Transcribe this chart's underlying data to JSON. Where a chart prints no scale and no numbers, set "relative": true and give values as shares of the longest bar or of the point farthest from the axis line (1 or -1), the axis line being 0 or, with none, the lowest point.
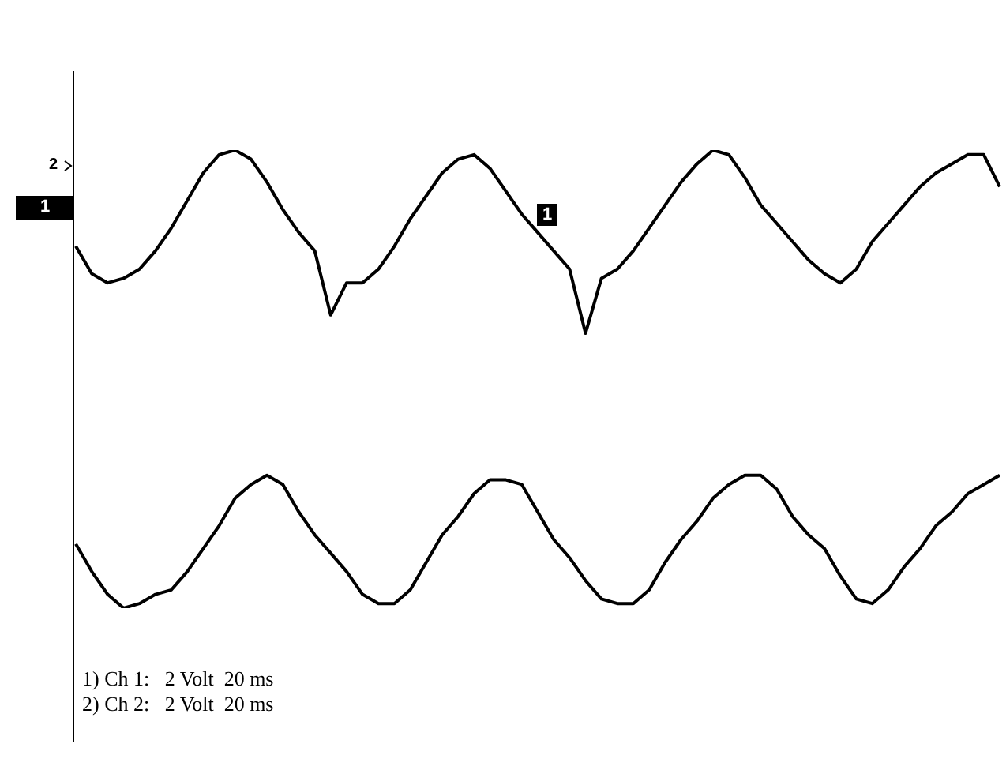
{
  "chart_data": {
    "type": "line",
    "relative": true,
    "legend": false,
    "marker": "none",
    "line_style": "solid",
    "categories": [
      null,
      null,
      null,
      null,
      null,
      null,
      null,
      null,
      null,
      null,
      null,
      null,
      null,
      null,
      null,
      null,
      null,
      null,
      null,
      null,
      null,
      null,
      null,
      null,
      null,
      null,
      null,
      null,
      null,
      null,
      null,
      null,
      null,
      null,
      null,
      null,
      null,
      null,
      null,
      null,
      null,
      null,
      null,
      null,
      null,
      null,
      null,
      null,
      null,
      null,
      null,
      null,
      null,
      null,
      null,
      null,
      null,
      null,
      null
    ],
    "series": [
      {
        "color": "#000000",
        "values": [
          0.79,
          0.73,
          0.71,
          0.72,
          0.74,
          0.78,
          0.83,
          0.89,
          0.95,
          0.99,
          1.0,
          0.98,
          0.93,
          0.87,
          0.82,
          0.78,
          0.64,
          0.71,
          0.71,
          0.74,
          0.79,
          0.85,
          0.9,
          0.95,
          0.98,
          0.99,
          0.96,
          0.91,
          0.86,
          0.82,
          0.78,
          0.74,
          0.6,
          0.72,
          0.74,
          0.78,
          0.83,
          0.88,
          0.93,
          0.97,
          1.0,
          0.99,
          0.94,
          0.88,
          0.84,
          0.8,
          0.76,
          0.73,
          0.71,
          0.74,
          0.8,
          0.84,
          0.88,
          0.92,
          0.95,
          0.97,
          0.99,
          0.99,
          0.92
        ]
      },
      {
        "color": "#000000",
        "values": [
          0.14,
          0.08,
          0.03,
          0.0,
          0.01,
          0.03,
          0.04,
          0.08,
          0.13,
          0.18,
          0.24,
          0.27,
          0.29,
          0.27,
          0.21,
          0.16,
          0.12,
          0.08,
          0.03,
          0.01,
          0.01,
          0.04,
          0.1,
          0.16,
          0.2,
          0.25,
          0.28,
          0.28,
          0.27,
          0.21,
          0.15,
          0.11,
          0.06,
          0.02,
          0.01,
          0.01,
          0.04,
          0.1,
          0.15,
          0.19,
          0.24,
          0.27,
          0.29,
          0.29,
          0.26,
          0.2,
          0.16,
          0.13,
          0.07,
          0.02,
          0.01,
          0.04,
          0.09,
          0.13,
          0.18,
          0.21,
          0.25,
          0.27,
          0.29
        ]
      }
    ],
    "annotations": [
      "1) Ch 1:   2 Volt  20 ms",
      "2) Ch 2:   2 Volt  20 ms",
      "2",
      "1",
      "1"
    ]
  }
}
